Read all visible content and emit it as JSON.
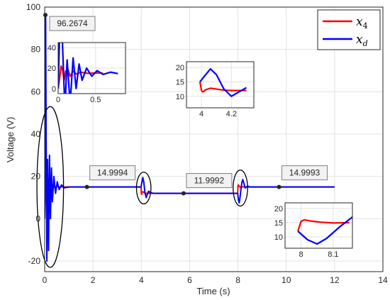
{
  "chart_data": {
    "type": "line",
    "xlabel": "Time (s)",
    "ylabel": "Voltage (V)",
    "xlim": [
      0,
      14
    ],
    "ylim": [
      -25,
      100
    ],
    "xticks": [
      "0",
      "2",
      "4",
      "6",
      "8",
      "10",
      "12",
      "14"
    ],
    "yticks": [
      "-20",
      "0",
      "20",
      "40",
      "60",
      "80",
      "100"
    ],
    "grid": true,
    "legend_position": "top-right",
    "series": [
      {
        "name": "x4",
        "color": "#ff0000",
        "x": [
          0,
          0.02,
          0.04,
          0.06,
          0.08,
          0.1,
          0.13,
          0.16,
          0.2,
          0.25,
          0.3,
          0.4,
          0.5,
          0.6,
          1.0,
          2.0,
          3.0,
          3.99,
          4.0,
          4.01,
          4.03,
          4.06,
          4.1,
          4.15,
          4.2,
          4.3,
          4.5,
          5.0,
          6.0,
          7.0,
          7.99,
          8.0,
          8.01,
          8.03,
          8.06,
          8.1,
          8.15,
          8.2,
          8.3,
          8.5,
          9.0,
          10.0,
          11.0,
          12.0
        ],
        "y": [
          0,
          10,
          22,
          18,
          8,
          17,
          19,
          12,
          17,
          14,
          16,
          14.8,
          15.3,
          15,
          15,
          15,
          15,
          15,
          12,
          11.5,
          12.3,
          12.8,
          12.5,
          12.1,
          12,
          12,
          12,
          12,
          12,
          12,
          12,
          15.5,
          16,
          15.6,
          15.2,
          14.9,
          15,
          15.1,
          15,
          15,
          15,
          15,
          15,
          15
        ]
      },
      {
        "name": "xd",
        "color": "#0000ff",
        "x": [
          0,
          0.02,
          0.04,
          0.06,
          0.09,
          0.12,
          0.16,
          0.2,
          0.24,
          0.28,
          0.32,
          0.38,
          0.45,
          0.52,
          0.6,
          0.7,
          0.8,
          1.0,
          2.0,
          3.0,
          3.99,
          4.02,
          4.06,
          4.1,
          4.15,
          4.2,
          4.25,
          4.3,
          4.4,
          4.5,
          5.0,
          6.0,
          7.0,
          7.99,
          8.02,
          8.05,
          8.08,
          8.12,
          8.16,
          8.2,
          8.25,
          8.3,
          8.4,
          8.5,
          9.0,
          10.0,
          11.0,
          12.0
        ],
        "y": [
          0,
          55,
          96.2674,
          40,
          -20,
          28,
          -15,
          30,
          0,
          24,
          8,
          20,
          12,
          17.5,
          13.8,
          16,
          14.6,
          15,
          14.9994,
          15,
          15,
          17,
          19.5,
          17.5,
          12.5,
          10,
          11.5,
          13,
          12.3,
          12,
          12,
          11.9992,
          12,
          12,
          9,
          7.5,
          9.5,
          13.5,
          17,
          18.5,
          16.5,
          14.5,
          15.4,
          15,
          15,
          14.9993,
          15,
          15
        ]
      }
    ],
    "annotations": [
      {
        "x": 0.03,
        "y": 96.2674,
        "text": "96.2674"
      },
      {
        "x": 1.75,
        "y": 14.9994,
        "text": "14.9994"
      },
      {
        "x": 5.75,
        "y": 11.9992,
        "text": "11.9992"
      },
      {
        "x": 9.7,
        "y": 14.9993,
        "text": "14.9993"
      }
    ],
    "insets": [
      {
        "xlim": [
          0,
          0.9
        ],
        "ylim": [
          -5,
          45
        ],
        "xticks": [
          "0",
          "0.5"
        ],
        "yticks": [
          "0",
          "20",
          "40"
        ],
        "range": [
          0,
          0.9
        ]
      },
      {
        "xlim": [
          3.9,
          4.35
        ],
        "ylim": [
          6,
          22
        ],
        "xticks": [
          "4",
          "4.2"
        ],
        "yticks": [
          "10",
          "15",
          "20"
        ],
        "range": [
          3.9,
          4.35
        ]
      },
      {
        "xlim": [
          7.95,
          8.16
        ],
        "ylim": [
          6,
          22
        ],
        "xticks": [
          "8",
          "8.1"
        ],
        "yticks": [
          "10",
          "15",
          "20"
        ],
        "range": [
          7.95,
          8.16
        ]
      }
    ]
  }
}
